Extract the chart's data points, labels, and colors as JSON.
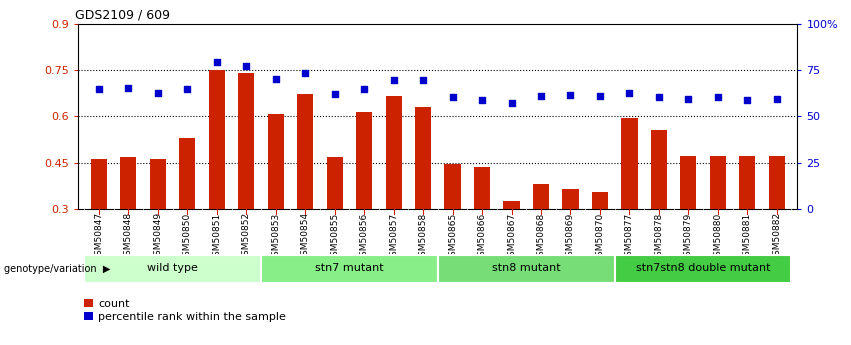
{
  "title": "GDS2109 / 609",
  "samples": [
    "GSM50847",
    "GSM50848",
    "GSM50849",
    "GSM50850",
    "GSM50851",
    "GSM50852",
    "GSM50853",
    "GSM50854",
    "GSM50855",
    "GSM50856",
    "GSM50857",
    "GSM50858",
    "GSM50865",
    "GSM50866",
    "GSM50867",
    "GSM50868",
    "GSM50869",
    "GSM50870",
    "GSM50877",
    "GSM50878",
    "GSM50879",
    "GSM50880",
    "GSM50881",
    "GSM50882"
  ],
  "counts": [
    0.462,
    0.468,
    0.462,
    0.53,
    0.752,
    0.742,
    0.608,
    0.672,
    0.468,
    0.615,
    0.668,
    0.63,
    0.445,
    0.435,
    0.325,
    0.38,
    0.365,
    0.355,
    0.595,
    0.555,
    0.472,
    0.472,
    0.47,
    0.472
  ],
  "percentile": [
    65.0,
    65.5,
    62.5,
    65.0,
    79.5,
    77.5,
    70.5,
    73.5,
    62.0,
    65.0,
    70.0,
    69.5,
    60.5,
    59.0,
    57.5,
    61.0,
    61.5,
    61.0,
    62.5,
    60.5,
    59.5,
    60.5,
    59.0,
    59.5
  ],
  "groups": [
    {
      "label": "wild type",
      "start": 0,
      "end": 6,
      "color": "#ccffcc"
    },
    {
      "label": "stn7 mutant",
      "start": 6,
      "end": 12,
      "color": "#88ee88"
    },
    {
      "label": "stn8 mutant",
      "start": 12,
      "end": 18,
      "color": "#77dd77"
    },
    {
      "label": "stn7stn8 double mutant",
      "start": 18,
      "end": 24,
      "color": "#44cc44"
    }
  ],
  "ylim_left": [
    0.3,
    0.9
  ],
  "ylim_right": [
    0,
    100
  ],
  "yticks_left": [
    0.3,
    0.45,
    0.6,
    0.75,
    0.9
  ],
  "yticks_right": [
    0,
    25,
    50,
    75,
    100
  ],
  "ytick_labels_right": [
    "0",
    "25",
    "50",
    "75",
    "100%"
  ],
  "bar_color": "#cc2200",
  "scatter_color": "#0000cc",
  "bar_width": 0.55,
  "grid_color": "#000000",
  "genotype_label": "genotype/variation",
  "ticklabel_bg": "#d8d8d8",
  "fig_bg": "#ffffff"
}
